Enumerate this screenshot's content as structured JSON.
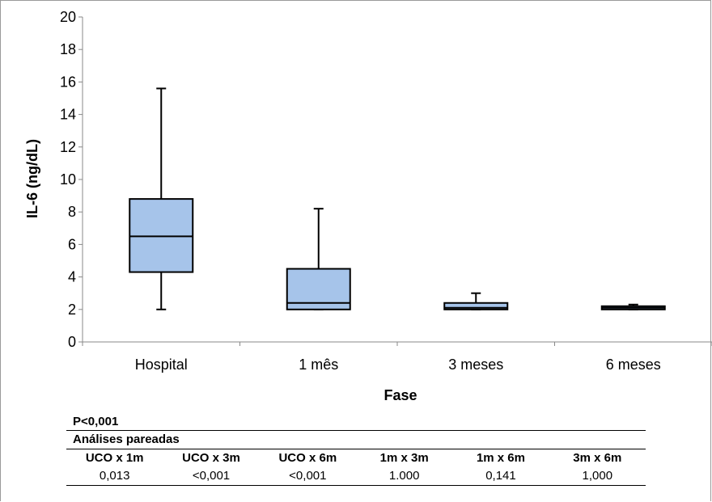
{
  "chart_data": {
    "type": "box",
    "categories": [
      "Hospital",
      "1 mês",
      "3 meses",
      "6 meses"
    ],
    "boxes": [
      {
        "category": "Hospital",
        "min": 2.0,
        "q1": 4.3,
        "median": 6.5,
        "q3": 8.8,
        "max": 15.6
      },
      {
        "category": "1 mês",
        "min": 2.0,
        "q1": 2.0,
        "median": 2.4,
        "q3": 4.5,
        "max": 8.2
      },
      {
        "category": "3 meses",
        "min": 2.0,
        "q1": 2.0,
        "median": 2.1,
        "q3": 2.4,
        "max": 3.0
      },
      {
        "category": "6 meses",
        "min": 2.0,
        "q1": 2.0,
        "median": 2.1,
        "q3": 2.2,
        "max": 2.3
      }
    ],
    "yticks": [
      "0",
      "2",
      "4",
      "6",
      "8",
      "10",
      "12",
      "14",
      "16",
      "18",
      "20"
    ],
    "ylim": [
      0,
      20
    ],
    "xlabel": "Fase",
    "ylabel": "IL-6 (ng/dL)",
    "box_color": "#a6c4ea",
    "grid": false
  },
  "stats": {
    "p_value": "P<0,001",
    "paired_title": "Análises pareadas",
    "columns": [
      "UCO x 1m",
      "UCO x 3m",
      "UCO x 6m",
      "1m x 3m",
      "1m x 6m",
      "3m x 6m"
    ],
    "values": [
      "0,013",
      "<0,001",
      "<0,001",
      "1.000",
      "0,141",
      "1,000"
    ]
  }
}
